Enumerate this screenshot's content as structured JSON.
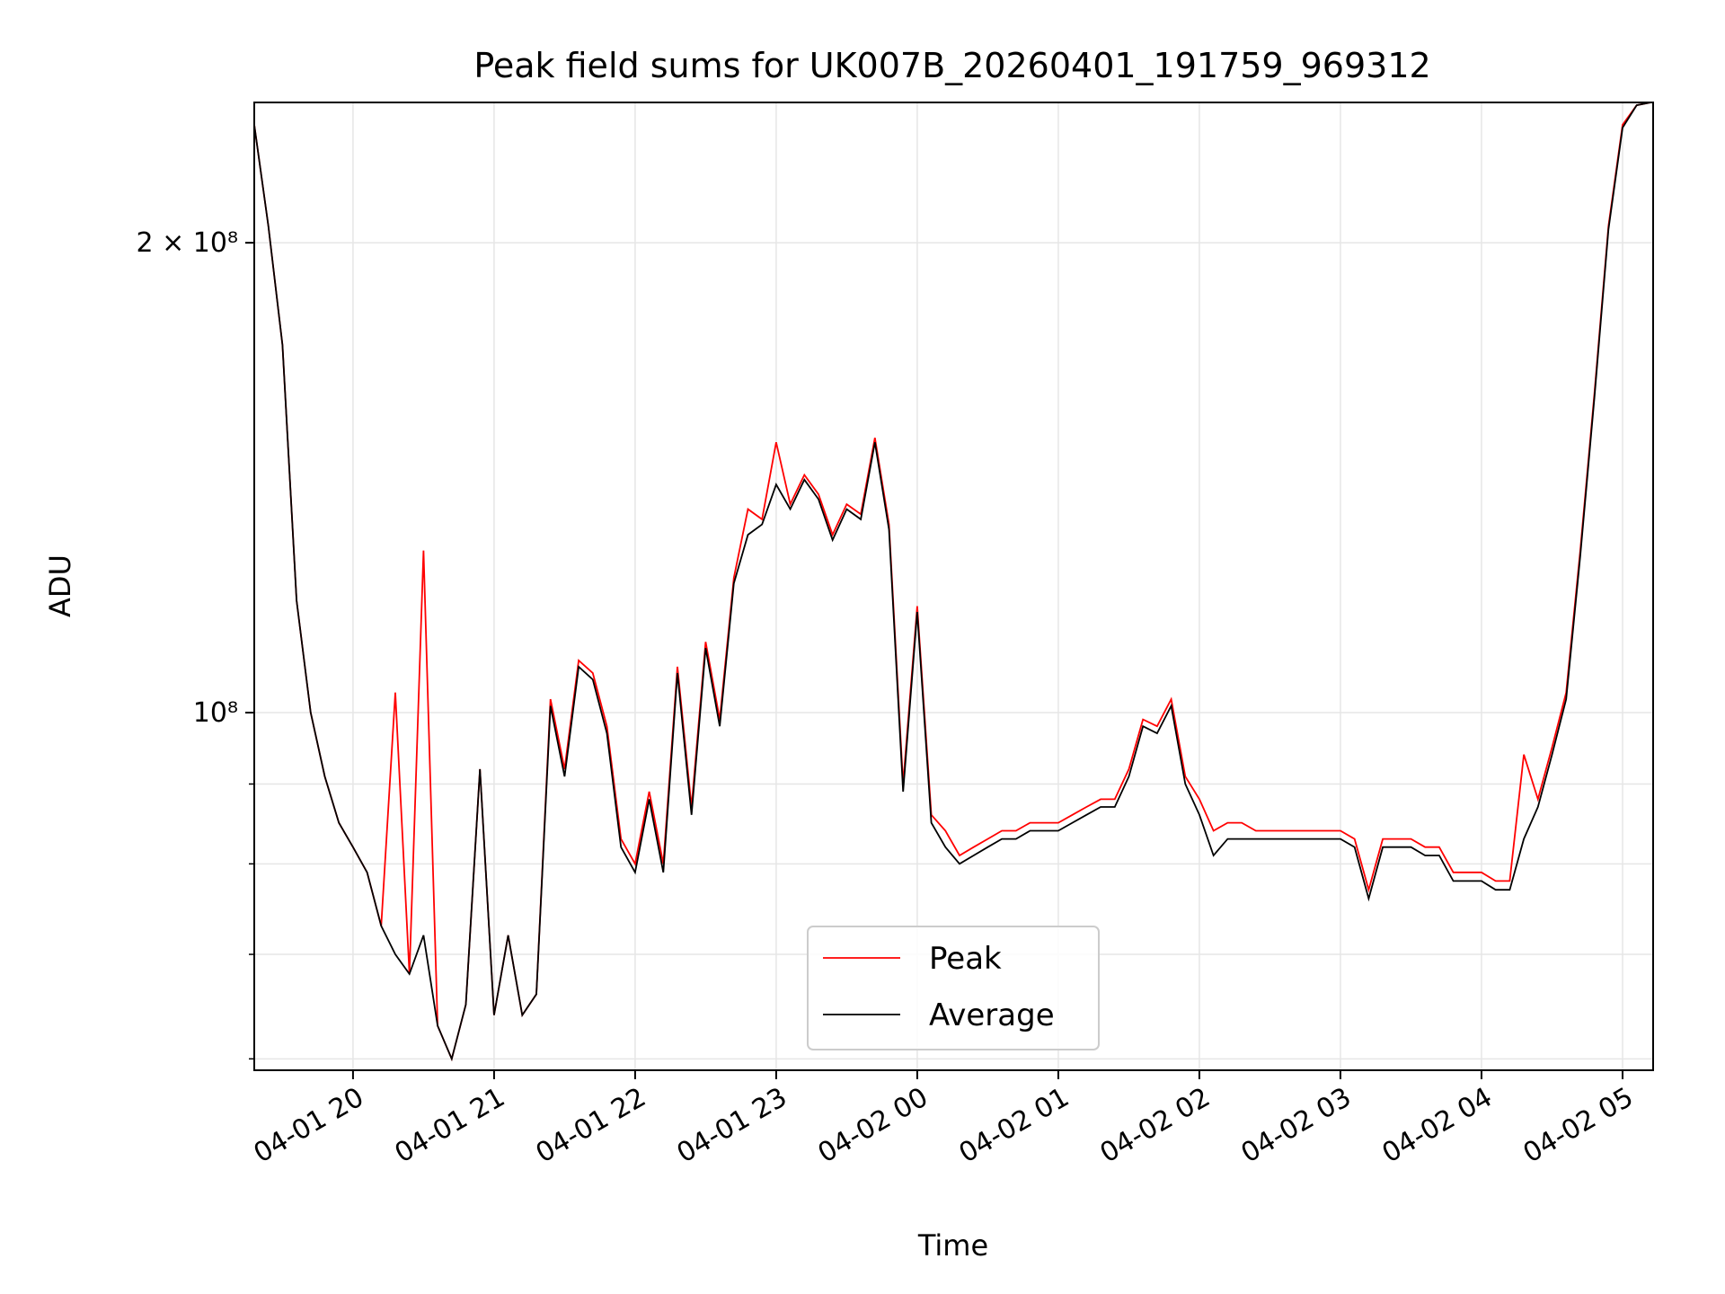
{
  "chart_data": {
    "type": "line",
    "title": "Peak field sums for UK007B_20260401_191759_969312",
    "xlabel": "Time",
    "ylabel": "ADU",
    "y_scale": "log",
    "ylim": [
      59000000,
      246000000
    ],
    "xlim": [
      "2026-04-01 19:18",
      "2026-04-02 05:13"
    ],
    "grid": true,
    "legend_position": "lower-center",
    "x_ticks": [
      "04-01 20",
      "04-01 21",
      "04-01 22",
      "04-01 23",
      "04-02 00",
      "04-02 01",
      "04-02 02",
      "04-02 03",
      "04-02 04",
      "04-02 05"
    ],
    "y_ticks": [
      "2 × 10⁸",
      "10⁸"
    ],
    "x": [
      "2026-04-01 19:18",
      "2026-04-01 19:24",
      "2026-04-01 19:30",
      "2026-04-01 19:36",
      "2026-04-01 19:42",
      "2026-04-01 19:48",
      "2026-04-01 19:54",
      "2026-04-01 20:00",
      "2026-04-01 20:06",
      "2026-04-01 20:12",
      "2026-04-01 20:18",
      "2026-04-01 20:24",
      "2026-04-01 20:30",
      "2026-04-01 20:36",
      "2026-04-01 20:42",
      "2026-04-01 20:48",
      "2026-04-01 20:54",
      "2026-04-01 21:00",
      "2026-04-01 21:06",
      "2026-04-01 21:12",
      "2026-04-01 21:18",
      "2026-04-01 21:24",
      "2026-04-01 21:30",
      "2026-04-01 21:36",
      "2026-04-01 21:42",
      "2026-04-01 21:48",
      "2026-04-01 21:54",
      "2026-04-01 22:00",
      "2026-04-01 22:06",
      "2026-04-01 22:12",
      "2026-04-01 22:18",
      "2026-04-01 22:24",
      "2026-04-01 22:30",
      "2026-04-01 22:36",
      "2026-04-01 22:42",
      "2026-04-01 22:48",
      "2026-04-01 22:54",
      "2026-04-01 23:00",
      "2026-04-01 23:06",
      "2026-04-01 23:12",
      "2026-04-01 23:18",
      "2026-04-01 23:24",
      "2026-04-01 23:30",
      "2026-04-01 23:36",
      "2026-04-01 23:42",
      "2026-04-01 23:48",
      "2026-04-01 23:54",
      "2026-04-02 00:00",
      "2026-04-02 00:06",
      "2026-04-02 00:12",
      "2026-04-02 00:18",
      "2026-04-02 00:24",
      "2026-04-02 00:30",
      "2026-04-02 00:36",
      "2026-04-02 00:42",
      "2026-04-02 00:48",
      "2026-04-02 00:54",
      "2026-04-02 01:00",
      "2026-04-02 01:06",
      "2026-04-02 01:12",
      "2026-04-02 01:18",
      "2026-04-02 01:24",
      "2026-04-02 01:30",
      "2026-04-02 01:36",
      "2026-04-02 01:42",
      "2026-04-02 01:48",
      "2026-04-02 01:54",
      "2026-04-02 02:00",
      "2026-04-02 02:06",
      "2026-04-02 02:12",
      "2026-04-02 02:18",
      "2026-04-02 02:24",
      "2026-04-02 02:30",
      "2026-04-02 02:36",
      "2026-04-02 02:42",
      "2026-04-02 02:48",
      "2026-04-02 02:54",
      "2026-04-02 03:00",
      "2026-04-02 03:06",
      "2026-04-02 03:12",
      "2026-04-02 03:18",
      "2026-04-02 03:24",
      "2026-04-02 03:30",
      "2026-04-02 03:36",
      "2026-04-02 03:42",
      "2026-04-02 03:48",
      "2026-04-02 03:54",
      "2026-04-02 04:00",
      "2026-04-02 04:06",
      "2026-04-02 04:12",
      "2026-04-02 04:18",
      "2026-04-02 04:24",
      "2026-04-02 04:30",
      "2026-04-02 04:36",
      "2026-04-02 04:42",
      "2026-04-02 04:48",
      "2026-04-02 04:54",
      "2026-04-02 05:00",
      "2026-04-02 05:06",
      "2026-04-02 05:12"
    ],
    "series": [
      {
        "name": "Peak",
        "color": "#ff0000",
        "values": [
          238000000,
          205000000,
          172000000,
          118000000,
          100000000,
          91000000,
          85000000,
          82000000,
          79000000,
          73000000,
          103000000,
          68000000,
          127000000,
          63000000,
          60000000,
          65000000,
          92000000,
          64000000,
          72000000,
          64000000,
          66000000,
          102000000,
          92000000,
          108000000,
          106000000,
          98000000,
          83000000,
          80000000,
          89000000,
          80000000,
          107000000,
          87000000,
          111000000,
          99000000,
          122000000,
          135000000,
          133000000,
          149000000,
          136000000,
          142000000,
          138000000,
          130000000,
          136000000,
          134000000,
          150000000,
          132000000,
          90000000,
          117000000,
          86000000,
          84000000,
          81000000,
          82000000,
          83000000,
          84000000,
          84000000,
          85000000,
          85000000,
          85000000,
          86000000,
          87000000,
          88000000,
          88000000,
          92000000,
          99000000,
          98000000,
          102000000,
          91000000,
          88000000,
          84000000,
          85000000,
          85000000,
          84000000,
          84000000,
          84000000,
          84000000,
          84000000,
          84000000,
          84000000,
          83000000,
          77000000,
          83000000,
          83000000,
          83000000,
          82000000,
          82000000,
          79000000,
          79000000,
          79000000,
          78000000,
          78000000,
          94000000,
          88000000,
          95000000,
          103000000,
          127000000,
          160000000,
          205000000,
          238000000,
          245000000,
          246000000
        ]
      },
      {
        "name": "Average",
        "color": "#000000",
        "values": [
          238000000,
          205000000,
          172000000,
          118000000,
          100000000,
          91000000,
          85000000,
          82000000,
          79000000,
          73000000,
          70000000,
          68000000,
          72000000,
          63000000,
          60000000,
          65000000,
          92000000,
          64000000,
          72000000,
          64000000,
          66000000,
          101000000,
          91000000,
          107000000,
          105000000,
          97000000,
          82000000,
          79000000,
          88000000,
          79000000,
          106000000,
          86000000,
          110000000,
          98000000,
          121000000,
          130000000,
          132000000,
          140000000,
          135000000,
          141000000,
          137000000,
          129000000,
          135000000,
          133000000,
          149000000,
          131000000,
          89000000,
          116000000,
          85000000,
          82000000,
          80000000,
          81000000,
          82000000,
          83000000,
          83000000,
          84000000,
          84000000,
          84000000,
          85000000,
          86000000,
          87000000,
          87000000,
          91000000,
          98000000,
          97000000,
          101000000,
          90000000,
          86000000,
          81000000,
          83000000,
          83000000,
          83000000,
          83000000,
          83000000,
          83000000,
          83000000,
          83000000,
          83000000,
          82000000,
          76000000,
          82000000,
          82000000,
          82000000,
          81000000,
          81000000,
          78000000,
          78000000,
          78000000,
          77000000,
          77000000,
          83000000,
          87000000,
          94000000,
          102000000,
          126000000,
          159000000,
          204000000,
          237000000,
          245000000,
          246000000
        ]
      }
    ]
  }
}
